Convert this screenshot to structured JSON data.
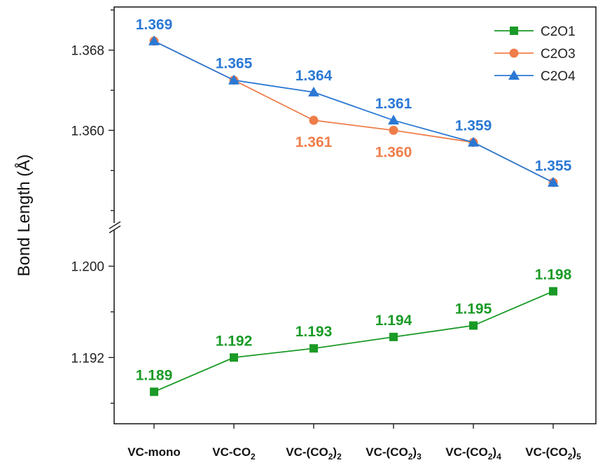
{
  "chart_data": {
    "type": "line",
    "title": "",
    "xlabel": "",
    "ylabel": "Bond Length (Å)",
    "categories": [
      "VC-mono",
      "VC-CO2",
      "VC-(CO2)2",
      "VC-(CO2)3",
      "VC-(CO2)4",
      "VC-(CO2)5"
    ],
    "category_labels": [
      {
        "base": "VC-mono",
        "sub": "",
        "tail": ""
      },
      {
        "base": "VC-CO",
        "sub": "2",
        "tail": ""
      },
      {
        "base": "VC-(CO",
        "sub": "2",
        "tail": ")"
      },
      {
        "base": "VC-(CO",
        "sub": "2",
        "tail": ")"
      },
      {
        "base": "VC-(CO",
        "sub": "2",
        "tail": ")"
      },
      {
        "base": "VC-(CO",
        "sub": "2",
        "tail": ")"
      }
    ],
    "category_subscripts": [
      "",
      "",
      "2",
      "3",
      "4",
      "5"
    ],
    "broken_axis": {
      "upper": {
        "ylim": [
          1.3518,
          1.3723
        ],
        "ticks": [
          1.36,
          1.368
        ],
        "tick_labels": [
          "1.360",
          "1.368"
        ]
      },
      "lower": {
        "ylim": [
          1.1862,
          1.2031
        ],
        "ticks": [
          1.192,
          1.2
        ],
        "tick_labels": [
          "1.192",
          "1.200"
        ]
      }
    },
    "legend_position": "top-right",
    "series": [
      {
        "name": "C2O1",
        "color": "#1a9a26",
        "marker": "square",
        "segment": "lower",
        "values": [
          1.189,
          1.192,
          1.1928,
          1.1938,
          1.1948,
          1.1978
        ],
        "labels": [
          "1.189",
          "1.192",
          "1.193",
          "1.194",
          "1.195",
          "1.198"
        ],
        "label_position": "above"
      },
      {
        "name": "C2O3",
        "color": "#ef7d4a",
        "marker": "circle",
        "segment": "upper",
        "values": [
          1.3689,
          1.365,
          1.361,
          1.36,
          1.3588,
          1.3548
        ],
        "labels": [
          "",
          "",
          "1.361",
          "1.360",
          "",
          ""
        ],
        "label_position": "below"
      },
      {
        "name": "C2O4",
        "color": "#2a78d4",
        "marker": "triangle",
        "segment": "upper",
        "values": [
          1.3689,
          1.365,
          1.3638,
          1.361,
          1.3588,
          1.3548
        ],
        "labels": [
          "1.369",
          "1.365",
          "1.364",
          "1.361",
          "1.359",
          "1.355"
        ],
        "label_position": "above"
      }
    ]
  }
}
